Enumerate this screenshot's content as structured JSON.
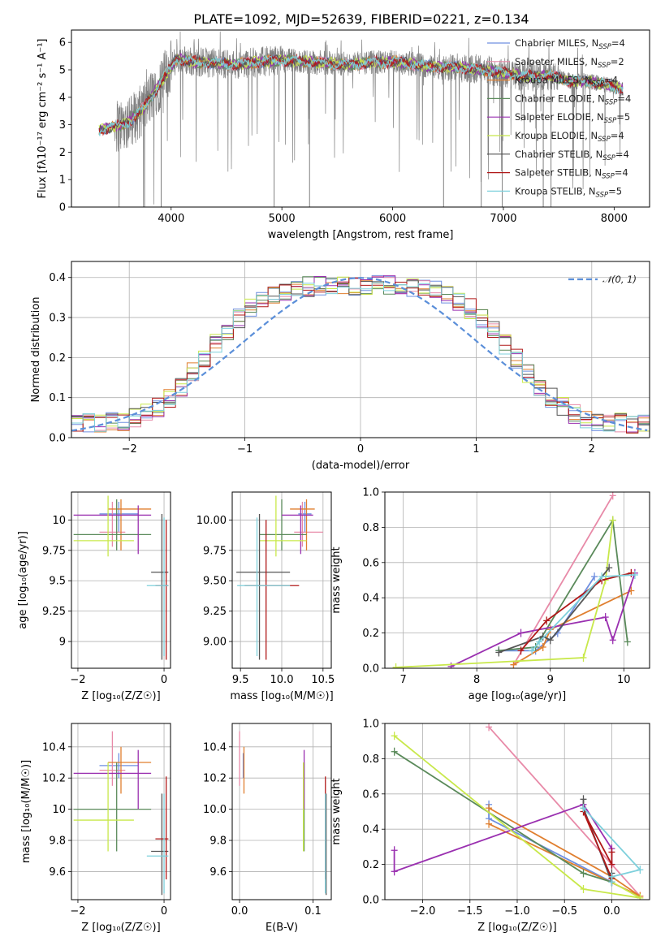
{
  "figure_title": "PLATE=1092, MJD=52639, FIBERID=0221, z=0.134",
  "colors": {
    "chabrier_miles": "#6f8fe0",
    "salpeter_miles": "#e88aa8",
    "kroupa_miles": "#e07f2f",
    "chabrier_elodie": "#5a8a5a",
    "salpeter_elodie": "#9a30b0",
    "kroupa_elodie": "#c8e84a",
    "chabrier_stelib": "#555555",
    "salpeter_stelib": "#b01818",
    "kroupa_stelib": "#7dd0dc",
    "data_spectrum": "#808080",
    "gauss": "#5b8fd9"
  },
  "legend": [
    {
      "base": "Chabrier MILES, N",
      "sub": "SSP",
      "val": "=4",
      "key": "chabrier_miles"
    },
    {
      "base": "Salpeter MILES, N",
      "sub": "SSP",
      "val": "=2",
      "key": "salpeter_miles"
    },
    {
      "base": "Kroupa MILES, N",
      "sub": "SSP",
      "val": "=4",
      "key": "kroupa_miles"
    },
    {
      "base": "Chabrier ELODIE, N",
      "sub": "SSP",
      "val": "=4",
      "key": "chabrier_elodie"
    },
    {
      "base": "Salpeter ELODIE, N",
      "sub": "SSP",
      "val": "=5",
      "key": "salpeter_elodie"
    },
    {
      "base": "Kroupa ELODIE, N",
      "sub": "SSP",
      "val": "=4",
      "key": "kroupa_elodie"
    },
    {
      "base": "Chabrier STELIB, N",
      "sub": "SSP",
      "val": "=4",
      "key": "chabrier_stelib"
    },
    {
      "base": "Salpeter STELIB, N",
      "sub": "SSP",
      "val": "=4",
      "key": "salpeter_stelib"
    },
    {
      "base": "Kroupa STELIB, N",
      "sub": "SSP",
      "val": "=5",
      "key": "kroupa_stelib"
    }
  ],
  "chart_data": [
    {
      "id": "spectrum",
      "type": "line",
      "xlabel": "wavelength [Angstrom, rest frame]",
      "ylabel": "Flux [fλ10⁻¹⁷ erg cm⁻² s⁻¹ A⁻¹]",
      "xlim": [
        3100,
        8320
      ],
      "ylim": [
        0,
        6.45
      ],
      "xticks": [
        4000,
        5000,
        6000,
        7000,
        8000
      ],
      "yticks": [
        0,
        1,
        2,
        3,
        4,
        5,
        6
      ],
      "grid": false,
      "continuum": {
        "x": [
          3350,
          3450,
          3550,
          3650,
          3750,
          3850,
          3950,
          4050,
          4200,
          4400,
          4600,
          4800,
          5000,
          5200,
          5400,
          5600,
          5800,
          6000,
          6200,
          6400,
          6600,
          6800,
          7000,
          7200,
          7400,
          7600,
          7800,
          8000,
          8080
        ],
        "y": [
          2.8,
          2.9,
          3.0,
          3.2,
          3.6,
          4.2,
          4.8,
          5.4,
          5.3,
          5.25,
          5.2,
          5.3,
          5.35,
          5.3,
          5.25,
          5.2,
          5.25,
          5.3,
          5.2,
          5.1,
          5.1,
          5.0,
          4.9,
          4.75,
          4.8,
          4.6,
          4.55,
          4.4,
          4.3
        ]
      },
      "deep_absorption": [
        3530,
        3760,
        3910,
        4930,
        5250,
        6460,
        6800,
        6990,
        7360,
        7430
      ]
    },
    {
      "id": "residuals",
      "type": "histogram",
      "xlabel": "(data-model)/error",
      "ylabel": "Normed distribution",
      "xlim": [
        -2.5,
        2.5
      ],
      "ylim": [
        0,
        0.44
      ],
      "xticks": [
        -2,
        -1,
        0,
        1,
        2
      ],
      "yticks": [
        0.0,
        0.1,
        0.2,
        0.3,
        0.4
      ],
      "grid": true,
      "gauss_label": "𝒩(0, 1)",
      "legend_position": "top-right"
    },
    {
      "id": "z_age",
      "type": "errorbar",
      "xlabel": "Z [log₁₀(Z/Z☉)]",
      "ylabel": "age  [log₁₀(age/yr)]",
      "xlim": [
        -2.15,
        0.15
      ],
      "ylim": [
        8.78,
        10.23
      ],
      "xticks": [
        -2,
        0
      ],
      "yticks": [
        9.0,
        9.25,
        9.5,
        9.75,
        10.0
      ],
      "grid": true
    },
    {
      "id": "mass_age",
      "type": "errorbar",
      "xlabel": "mass [log₁₀(M/M☉)]",
      "ylabel": "",
      "xlim": [
        9.4,
        10.6
      ],
      "ylim": [
        8.78,
        10.23
      ],
      "xticks": [
        9.5,
        10.0,
        10.5
      ],
      "yticks": [
        9.0,
        9.25,
        9.5,
        9.75,
        10.0
      ],
      "grid": true
    },
    {
      "id": "age_weight",
      "type": "line",
      "xlabel": "age  [log₁₀(age/yr)]",
      "ylabel": "mass weight",
      "xlim": [
        6.75,
        10.35
      ],
      "ylim": [
        0,
        1.0
      ],
      "xticks": [
        7,
        8,
        9,
        10
      ],
      "yticks": [
        0.0,
        0.2,
        0.4,
        0.6,
        0.8,
        1.0
      ],
      "grid": true
    },
    {
      "id": "z_mass",
      "type": "errorbar",
      "xlabel": "Z [log₁₀(Z/Z☉)]",
      "ylabel": "mass [log₁₀(M/M☉)]",
      "xlim": [
        -2.15,
        0.15
      ],
      "ylim": [
        9.42,
        10.55
      ],
      "xticks": [
        -2,
        0
      ],
      "yticks": [
        9.6,
        9.8,
        10.0,
        10.2,
        10.4
      ],
      "grid": true
    },
    {
      "id": "ebv_mass",
      "type": "errorbar",
      "xlabel": "E(B-V)",
      "ylabel": "",
      "xlim": [
        -0.01,
        0.125
      ],
      "ylim": [
        9.42,
        10.55
      ],
      "xticks": [
        0.0,
        0.1
      ],
      "yticks": [
        9.6,
        9.8,
        10.0,
        10.2,
        10.4
      ],
      "grid": true
    },
    {
      "id": "z_weight",
      "type": "line",
      "xlabel": "Z [log₁₀(Z/Z☉)]",
      "ylabel": "mass weight",
      "xlim": [
        -2.4,
        0.4
      ],
      "ylim": [
        0,
        1.0
      ],
      "xticks": [
        -2.0,
        -1.5,
        -1.0,
        -0.5,
        0.0
      ],
      "yticks": [
        0.0,
        0.2,
        0.4,
        0.6,
        0.8,
        1.0
      ],
      "grid": true
    }
  ],
  "model_fits": [
    {
      "key": "chabrier_miles",
      "age": 10.05,
      "Z": -1.05,
      "mass": 10.28,
      "ebv": 0.005,
      "tmin": 9.9,
      "tmax": 10.15,
      "zmin": -1.5,
      "zmax": -0.6,
      "mmin": 10.2,
      "mmax": 10.36
    },
    {
      "key": "salpeter_miles",
      "age": 9.9,
      "Z": -1.2,
      "mass": 10.25,
      "ebv": 0.0,
      "tmin": 9.78,
      "tmax": 10.15,
      "zmin": -1.5,
      "zmax": -0.9,
      "mmin": 10.15,
      "mmax": 10.5
    },
    {
      "key": "kroupa_miles",
      "age": 10.09,
      "Z": -1.0,
      "mass": 10.3,
      "ebv": 0.006,
      "tmin": 9.75,
      "tmax": 10.17,
      "zmin": -1.3,
      "zmax": -0.3,
      "mmin": 10.1,
      "mmax": 10.4
    },
    {
      "key": "chabrier_elodie",
      "age": 9.88,
      "Z": -1.1,
      "mass": 10.0,
      "ebv": 0.088,
      "tmin": 9.75,
      "tmax": 10.17,
      "zmin": -2.1,
      "zmax": -0.3,
      "mmin": 9.73,
      "mmax": 10.3
    },
    {
      "key": "salpeter_elodie",
      "age": 10.04,
      "Z": -0.6,
      "mass": 10.23,
      "ebv": 0.088,
      "tmin": 9.72,
      "tmax": 10.12,
      "zmin": -2.1,
      "zmax": -0.3,
      "mmin": 10.0,
      "mmax": 10.38
    },
    {
      "key": "kroupa_elodie",
      "age": 9.83,
      "Z": -1.3,
      "mass": 9.93,
      "ebv": 0.087,
      "tmin": 9.7,
      "tmax": 10.2,
      "zmin": -2.1,
      "zmax": -0.7,
      "mmin": 9.73,
      "mmax": 10.3
    },
    {
      "key": "chabrier_stelib",
      "age": 9.57,
      "Z": -0.05,
      "mass": 9.73,
      "ebv": 0.118,
      "tmin": 8.85,
      "tmax": 10.05,
      "zmin": -0.3,
      "zmax": 0.1,
      "mmin": 9.45,
      "mmax": 10.1
    },
    {
      "key": "salpeter_stelib",
      "age": 9.46,
      "Z": 0.05,
      "mass": 9.81,
      "ebv": 0.117,
      "tmin": 8.85,
      "tmax": 10.0,
      "zmin": -0.2,
      "zmax": 0.1,
      "mmin": 9.55,
      "mmax": 10.21
    },
    {
      "key": "kroupa_stelib",
      "age": 9.46,
      "Z": 0.0,
      "mass": 9.7,
      "ebv": 0.117,
      "tmin": 8.88,
      "tmax": 10.02,
      "zmin": -0.4,
      "zmax": 0.1,
      "mmin": 9.46,
      "mmax": 10.1
    }
  ],
  "ssp_components": [
    {
      "key": "chabrier_miles",
      "age": [
        8.3,
        8.8,
        9.1,
        9.6
      ],
      "weight": [
        0.1,
        0.1,
        0.2,
        0.52
      ],
      "Z": [
        -1.3,
        -1.3,
        0.0,
        -0.3
      ],
      "zweight": [
        0.54,
        0.46,
        0.1,
        0.52
      ]
    },
    {
      "key": "salpeter_miles",
      "age": [
        9.85,
        8.5
      ],
      "weight": [
        0.98,
        0.02
      ],
      "Z": [
        -1.3,
        0.3
      ],
      "zweight": [
        0.98,
        0.02
      ]
    },
    {
      "key": "kroupa_miles",
      "age": [
        8.5,
        8.9,
        9.0,
        10.1
      ],
      "weight": [
        0.02,
        0.12,
        0.22,
        0.44
      ],
      "Z": [
        -1.3,
        0.3,
        0.0,
        -1.3
      ],
      "zweight": [
        0.43,
        0.02,
        0.13,
        0.52
      ]
    },
    {
      "key": "chabrier_elodie",
      "age": [
        8.3,
        8.8,
        9.85,
        10.05
      ],
      "weight": [
        0.1,
        0.12,
        0.84,
        0.15
      ],
      "Z": [
        -2.3,
        -0.3,
        0.0,
        0.0
      ],
      "zweight": [
        0.84,
        0.15,
        0.1,
        0.12
      ]
    },
    {
      "key": "salpeter_elodie",
      "age": [
        7.65,
        8.6,
        9.75,
        9.85,
        10.15
      ],
      "weight": [
        0.01,
        0.2,
        0.29,
        0.16,
        0.54
      ],
      "Z": [
        -2.3,
        -2.3,
        -0.3,
        0.0,
        0.0
      ],
      "zweight": [
        0.28,
        0.16,
        0.54,
        0.29,
        0.2
      ]
    },
    {
      "key": "kroupa_elodie",
      "age": [
        6.9,
        9.45,
        9.75,
        9.85
      ],
      "weight": [
        0.005,
        0.06,
        0.5,
        0.84
      ],
      "Z": [
        -2.3,
        -0.3,
        0.3,
        0.0
      ],
      "zweight": [
        0.93,
        0.06,
        0.01,
        0.1
      ]
    },
    {
      "key": "chabrier_stelib",
      "age": [
        8.3,
        8.9,
        9.0,
        9.8
      ],
      "weight": [
        0.09,
        0.18,
        0.16,
        0.57
      ],
      "Z": [
        -0.3,
        -0.3,
        0.0,
        0.0
      ],
      "zweight": [
        0.57,
        0.52,
        0.1,
        0.15
      ]
    },
    {
      "key": "salpeter_stelib",
      "age": [
        8.6,
        8.95,
        9.7,
        10.1
      ],
      "weight": [
        0.1,
        0.27,
        0.5,
        0.54
      ],
      "Z": [
        0.0,
        0.0,
        -0.3,
        0.0
      ],
      "zweight": [
        0.27,
        0.2,
        0.5,
        0.12
      ]
    },
    {
      "key": "kroupa_stelib",
      "age": [
        8.75,
        8.85,
        9.7,
        10.15
      ],
      "weight": [
        0.1,
        0.15,
        0.52,
        0.53
      ],
      "Z": [
        0.0,
        0.0,
        0.3,
        -0.3
      ],
      "zweight": [
        0.1,
        0.13,
        0.17,
        0.52
      ]
    }
  ]
}
